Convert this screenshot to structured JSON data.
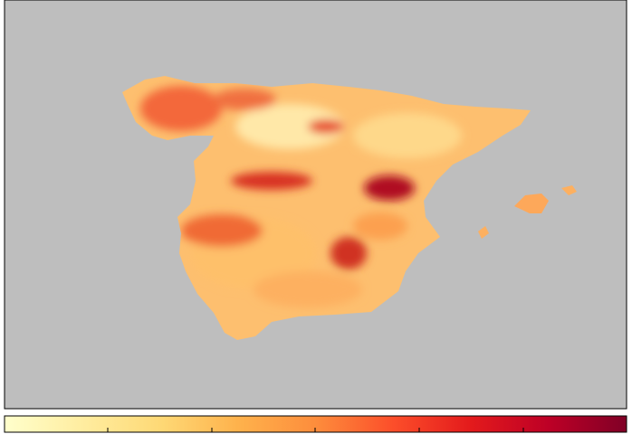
{
  "map": {
    "colorbar": {
      "colors": [
        "#ffffcc",
        "#ffeda0",
        "#fed976",
        "#feb24c",
        "#fd8d3c",
        "#fc4e2a",
        "#e31a1c",
        "#bd0026",
        "#800026"
      ]
    }
  }
}
